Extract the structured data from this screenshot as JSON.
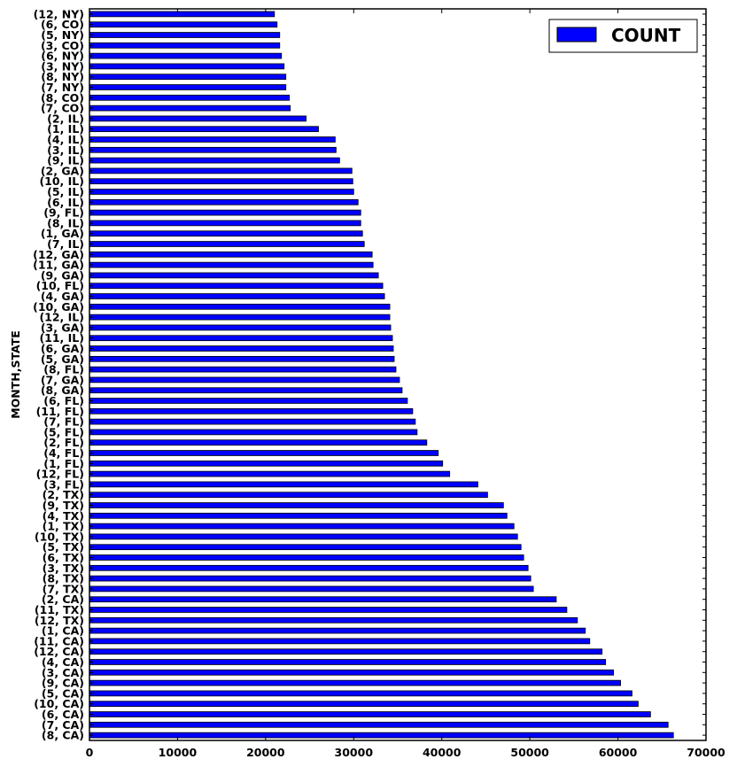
{
  "chart_data": {
    "type": "bar",
    "orientation": "horizontal",
    "ylabel": "MONTH,STATE",
    "xlabel": "",
    "xlim": [
      0,
      70000
    ],
    "x_ticks": [
      "0",
      "10000",
      "20000",
      "30000",
      "40000",
      "50000",
      "60000",
      "70000"
    ],
    "grid": false,
    "legend_position": "top-right",
    "bar_color": "#0000ff",
    "categories": [
      "(12, NY)",
      "(6, CO)",
      "(5, NY)",
      "(3, CO)",
      "(6, NY)",
      "(3, NY)",
      "(8, NY)",
      "(7, NY)",
      "(8, CO)",
      "(7, CO)",
      "(2, IL)",
      "(1, IL)",
      "(4, IL)",
      "(3, IL)",
      "(9, IL)",
      "(2, GA)",
      "(10, IL)",
      "(5, IL)",
      "(6, IL)",
      "(9, FL)",
      "(8, IL)",
      "(1, GA)",
      "(7, IL)",
      "(12, GA)",
      "(11, GA)",
      "(9, GA)",
      "(10, FL)",
      "(4, GA)",
      "(10, GA)",
      "(12, IL)",
      "(3, GA)",
      "(11, IL)",
      "(6, GA)",
      "(5, GA)",
      "(8, FL)",
      "(7, GA)",
      "(8, GA)",
      "(6, FL)",
      "(11, FL)",
      "(7, FL)",
      "(5, FL)",
      "(2, FL)",
      "(4, FL)",
      "(1, FL)",
      "(12, FL)",
      "(3, FL)",
      "(2, TX)",
      "(9, TX)",
      "(4, TX)",
      "(1, TX)",
      "(10, TX)",
      "(5, TX)",
      "(6, TX)",
      "(3, TX)",
      "(8, TX)",
      "(7, TX)",
      "(2, CA)",
      "(11, TX)",
      "(12, TX)",
      "(1, CA)",
      "(11, CA)",
      "(12, CA)",
      "(4, CA)",
      "(3, CA)",
      "(9, CA)",
      "(5, CA)",
      "(10, CA)",
      "(6, CA)",
      "(7, CA)",
      "(8, CA)"
    ],
    "series": [
      {
        "name": "COUNT",
        "values": [
          21000,
          21300,
          21600,
          21600,
          21800,
          22100,
          22300,
          22300,
          22700,
          22800,
          24600,
          26000,
          27900,
          28000,
          28400,
          29800,
          29900,
          30000,
          30500,
          30800,
          30800,
          31000,
          31200,
          32100,
          32200,
          32800,
          33300,
          33500,
          34100,
          34100,
          34200,
          34400,
          34500,
          34600,
          34800,
          35200,
          35500,
          36100,
          36700,
          37000,
          37200,
          38300,
          39600,
          40100,
          40900,
          44100,
          45200,
          47000,
          47400,
          48200,
          48600,
          49000,
          49300,
          49800,
          50100,
          50400,
          53000,
          54200,
          55400,
          56300,
          56800,
          58200,
          58600,
          59500,
          60300,
          61600,
          62300,
          63700,
          65700,
          66300
        ]
      }
    ]
  }
}
